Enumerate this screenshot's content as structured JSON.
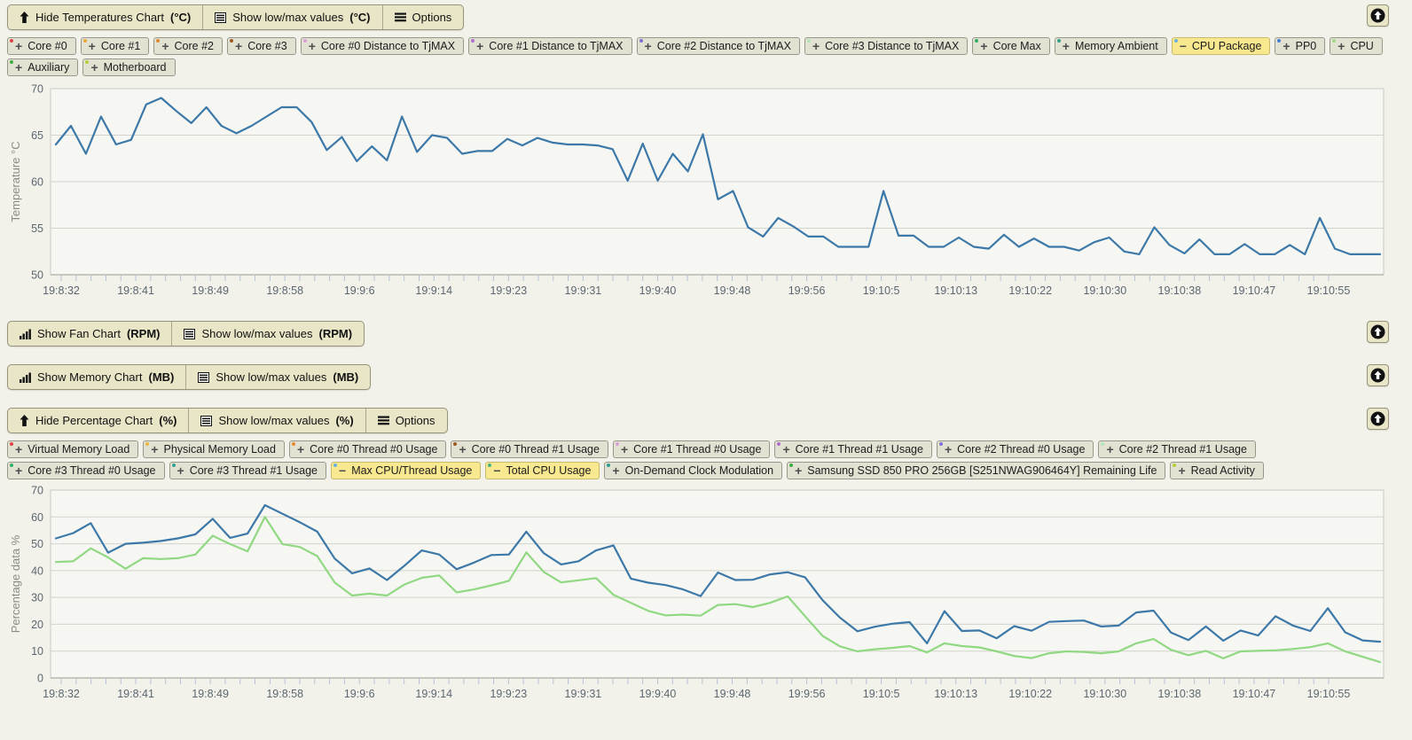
{
  "colors": {
    "active_button_bg": "#f8e88f",
    "button_bg": "#e3e1d2",
    "toolbar_bg": "#e9e6c7",
    "temp_line": "#3c78a8",
    "max_cpu_line": "#3c78a8",
    "total_cpu_line": "#90d882"
  },
  "sections": {
    "temperature": {
      "toolbar": [
        {
          "icon": "arrow-up",
          "text": "Hide Temperatures Chart",
          "unit": "(°C)"
        },
        {
          "icon": "list",
          "text": "Show low/max values",
          "unit": "(°C)"
        },
        {
          "icon": "options",
          "text": "Options",
          "unit": ""
        }
      ],
      "series_buttons": [
        {
          "label": "Core #0",
          "dot": "#e04343",
          "active": false
        },
        {
          "label": "Core #1",
          "dot": "#eaa93c",
          "active": false
        },
        {
          "label": "Core #2",
          "dot": "#e0892f",
          "active": false
        },
        {
          "label": "Core #3",
          "dot": "#9c5a22",
          "active": false
        },
        {
          "label": "Core #0 Distance to TjMAX",
          "dot": "#d9a0d9",
          "active": false
        },
        {
          "label": "Core #1 Distance to TjMAX",
          "dot": "#b06fd0",
          "active": false
        },
        {
          "label": "Core #2 Distance to TjMAX",
          "dot": "#7e6fd6",
          "active": false
        },
        {
          "label": "Core #3 Distance to TjMAX",
          "dot": "#b2e6b8",
          "active": false
        },
        {
          "label": "Core Max",
          "dot": "#2fae64",
          "active": false
        },
        {
          "label": "Memory Ambient",
          "dot": "#35a08c",
          "active": false
        },
        {
          "label": "CPU Package",
          "dot": "#6ab2dc",
          "active": true
        },
        {
          "label": "PP0",
          "dot": "#4a7fd6",
          "active": false
        },
        {
          "label": "CPU",
          "dot": "#9fdc8a",
          "active": false
        },
        {
          "label": "Auxiliary",
          "dot": "#3cae46",
          "active": false
        },
        {
          "label": "Motherboard",
          "dot": "#b4d13c",
          "active": false
        }
      ]
    },
    "fan": {
      "toolbar": [
        {
          "icon": "chart",
          "text": "Show Fan Chart",
          "unit": "(RPM)"
        },
        {
          "icon": "list",
          "text": "Show low/max values",
          "unit": "(RPM)"
        }
      ]
    },
    "memory": {
      "toolbar": [
        {
          "icon": "chart",
          "text": "Show Memory Chart",
          "unit": "(MB)"
        },
        {
          "icon": "list",
          "text": "Show low/max values",
          "unit": "(MB)"
        }
      ]
    },
    "percentage": {
      "toolbar": [
        {
          "icon": "arrow-up",
          "text": "Hide Percentage Chart",
          "unit": "(%)"
        },
        {
          "icon": "list",
          "text": "Show low/max values",
          "unit": "(%)"
        },
        {
          "icon": "options",
          "text": "Options",
          "unit": ""
        }
      ],
      "series_buttons": [
        {
          "label": "Virtual Memory Load",
          "dot": "#e04343",
          "active": false
        },
        {
          "label": "Physical Memory Load",
          "dot": "#eab744",
          "active": false
        },
        {
          "label": "Core #0 Thread #0 Usage",
          "dot": "#e0892f",
          "active": false
        },
        {
          "label": "Core #0 Thread #1 Usage",
          "dot": "#9c5a22",
          "active": false
        },
        {
          "label": "Core #1 Thread #0 Usage",
          "dot": "#d9a0d9",
          "active": false
        },
        {
          "label": "Core #1 Thread #1 Usage",
          "dot": "#b06fd0",
          "active": false
        },
        {
          "label": "Core #2 Thread #0 Usage",
          "dot": "#7e6fd6",
          "active": false
        },
        {
          "label": "Core #2 Thread #1 Usage",
          "dot": "#b2e6b8",
          "active": false
        },
        {
          "label": "Core #3 Thread #0 Usage",
          "dot": "#2fae64",
          "active": false
        },
        {
          "label": "Core #3 Thread #1 Usage",
          "dot": "#35a08c",
          "active": false
        },
        {
          "label": "Max CPU/Thread Usage",
          "dot": "#6ab2dc",
          "active": true
        },
        {
          "label": "Total CPU Usage",
          "dot": "#46b388",
          "active": true
        },
        {
          "label": "On-Demand Clock Modulation",
          "dot": "#2f9d8f",
          "active": false
        },
        {
          "label": "Samsung SSD 850 PRO 256GB [S251NWAG906464Y] Remaining Life",
          "dot": "#3cae46",
          "active": false
        },
        {
          "label": "Read Activity",
          "dot": "#b4d13c",
          "active": false
        }
      ]
    }
  },
  "chart_data": [
    {
      "type": "line",
      "title": "",
      "xlabel": "",
      "ylabel": "Temperature °C",
      "ylim": [
        50,
        70
      ],
      "yticks": [
        50,
        55,
        60,
        65,
        70
      ],
      "grid": true,
      "legend": "none",
      "x_labels": [
        "19:8:32",
        "19:8:41",
        "19:8:49",
        "19:8:58",
        "19:9:6",
        "19:9:14",
        "19:9:23",
        "19:9:31",
        "19:9:40",
        "19:9:48",
        "19:9:56",
        "19:10:5",
        "19:10:13",
        "19:10:22",
        "19:10:30",
        "19:10:38",
        "19:10:47",
        "19:10:55"
      ],
      "series": [
        {
          "name": "CPU Package",
          "color": "#3c78a8",
          "values": [
            64,
            66,
            63,
            67,
            64,
            64.5,
            68.3,
            69,
            67.6,
            66.3,
            68,
            66,
            65.2,
            66,
            67,
            68,
            68,
            66.4,
            63.4,
            64.8,
            62.2,
            63.8,
            62.3,
            67,
            63.2,
            65,
            64.7,
            63,
            63.3,
            63.3,
            64.6,
            63.9,
            64.7,
            64.2,
            64,
            64,
            63.9,
            63.5,
            60.1,
            64.1,
            60.1,
            63,
            61.1,
            65.1,
            58.1,
            59,
            55.1,
            54.1,
            56.1,
            55.2,
            54.1,
            54.1,
            53,
            53,
            53,
            59,
            54.2,
            54.2,
            53,
            53,
            54,
            53,
            52.8,
            54.3,
            53,
            53.9,
            53,
            53,
            52.6,
            53.5,
            54,
            52.5,
            52.2,
            55.1,
            53.2,
            52.3,
            53.8,
            52.2,
            52.2,
            53.3,
            52.2,
            52.2,
            53.2,
            52.2,
            56.1,
            52.8,
            52.2,
            52.2,
            52.2
          ]
        }
      ]
    },
    {
      "type": "line",
      "title": "",
      "xlabel": "",
      "ylabel": "Percentage data %",
      "ylim": [
        0,
        70
      ],
      "yticks": [
        0,
        10,
        20,
        30,
        40,
        50,
        60,
        70
      ],
      "grid": true,
      "legend": "none",
      "x_labels": [
        "19:8:32",
        "19:8:41",
        "19:8:49",
        "19:8:58",
        "19:9:6",
        "19:9:14",
        "19:9:23",
        "19:9:31",
        "19:9:40",
        "19:9:48",
        "19:9:56",
        "19:10:5",
        "19:10:13",
        "19:10:22",
        "19:10:30",
        "19:10:38",
        "19:10:47",
        "19:10:55"
      ],
      "series": [
        {
          "name": "Max CPU/Thread Usage",
          "color": "#3c78a8",
          "values": [
            52,
            54,
            57.7,
            46.7,
            50,
            50.4,
            51,
            52,
            53.5,
            59.3,
            52.2,
            53.8,
            64.4,
            61.2,
            58,
            54.5,
            44.5,
            39,
            40.8,
            36.5,
            41.8,
            47.5,
            46,
            40.5,
            43,
            45.8,
            46,
            54.5,
            46.5,
            42.3,
            43.5,
            47.5,
            49.4,
            37,
            35.5,
            34.6,
            33,
            30.5,
            39.3,
            36.5,
            36.6,
            38.6,
            39.4,
            37.5,
            29,
            22.5,
            17.4,
            19.1,
            20.2,
            20.8,
            12.9,
            24.9,
            17.5,
            17.7,
            14.8,
            19.3,
            17.6,
            20.9,
            21.2,
            21.4,
            19.2,
            19.5,
            24.4,
            25.1,
            16.9,
            14.1,
            19.2,
            13.9,
            17.7,
            15.8,
            23,
            19.5,
            17.5,
            26,
            17,
            14,
            13.5
          ]
        },
        {
          "name": "Total CPU Usage",
          "color": "#90d882",
          "values": [
            43.2,
            43.5,
            48.3,
            44.9,
            40.7,
            44.6,
            44.3,
            44.6,
            46,
            53,
            49.9,
            47.2,
            60,
            49.9,
            48.8,
            45.4,
            35.6,
            30.7,
            31.4,
            30.7,
            34.8,
            37.3,
            38.2,
            31.9,
            33,
            34.5,
            36.2,
            46.8,
            39.5,
            35.6,
            36.4,
            37.2,
            31,
            28,
            25,
            23.3,
            23.6,
            23.2,
            27.2,
            27.5,
            26.4,
            28,
            30.4,
            23,
            15.7,
            11.8,
            9.9,
            10.7,
            11.2,
            11.9,
            9.5,
            12.9,
            11.9,
            11.4,
            9.9,
            8.2,
            7.4,
            9.2,
            9.9,
            9.7,
            9.2,
            9.9,
            12.9,
            14.5,
            10.5,
            8.5,
            10.1,
            7.3,
            9.9,
            10.1,
            10.3,
            10.8,
            11.5,
            12.9,
            9.9,
            7.9,
            5.9
          ]
        }
      ]
    }
  ]
}
